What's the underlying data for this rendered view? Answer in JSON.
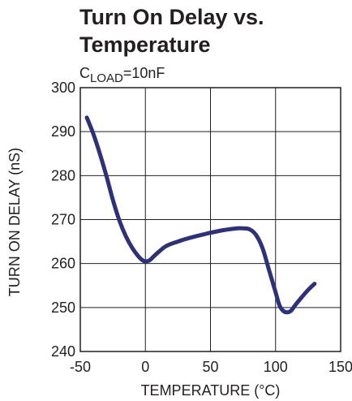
{
  "chart_data": {
    "type": "line",
    "title_lines": [
      "Turn On Delay vs.",
      "Temperature"
    ],
    "condition": {
      "prefix": "C",
      "subscript": "LOAD",
      "suffix": "=10nF"
    },
    "xlabel": "TEMPERATURE (°C)",
    "ylabel": "TURN ON DELAY (nS)",
    "xlim": [
      -50,
      150
    ],
    "ylim": [
      240,
      300
    ],
    "x_ticks": [
      -50,
      0,
      50,
      100,
      150
    ],
    "y_ticks": [
      240,
      250,
      260,
      270,
      280,
      290,
      300
    ],
    "grid": true,
    "series": [
      {
        "color": "#2e3178",
        "x": [
          -45,
          -40,
          -35,
          -30,
          -25,
          -20,
          -15,
          -10,
          -5,
          -2,
          0,
          3,
          6,
          10,
          15,
          20,
          25,
          30,
          40,
          50,
          60,
          70,
          75,
          80,
          85,
          90,
          95,
          100,
          103,
          106,
          109,
          112,
          115,
          120,
          125,
          130
        ],
        "y": [
          293.2,
          289.5,
          285.0,
          280.0,
          274.5,
          269.8,
          266.2,
          263.5,
          261.5,
          260.7,
          260.5,
          260.7,
          261.5,
          262.6,
          263.8,
          264.5,
          265.0,
          265.5,
          266.3,
          267.0,
          267.6,
          268.0,
          268.0,
          267.8,
          266.5,
          263.5,
          258.5,
          253.5,
          250.5,
          249.2,
          248.9,
          249.3,
          250.5,
          252.3,
          254.0,
          255.4
        ]
      }
    ]
  }
}
